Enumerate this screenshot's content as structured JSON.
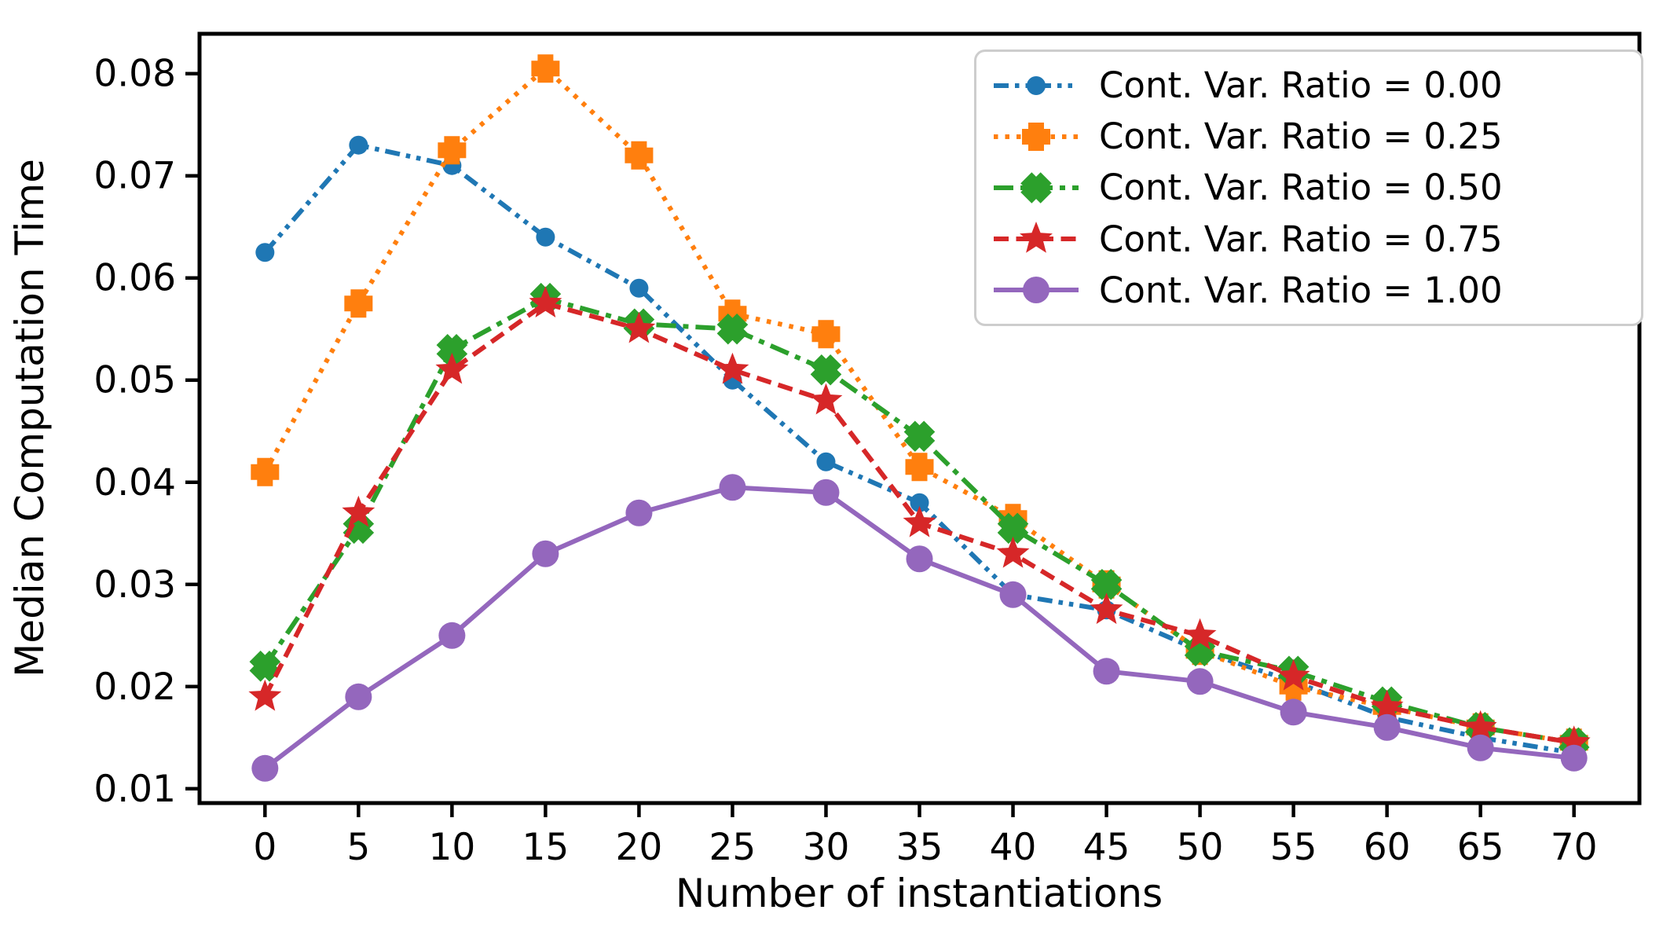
{
  "page": {
    "background": "#ffffff"
  },
  "chart_data": {
    "type": "line",
    "title": "",
    "xlabel": "Number of instantiations",
    "ylabel": "Median Computation Time",
    "grid": false,
    "legend_position": "upper-right",
    "legend_border_color": "#cdcdcd",
    "legend_background": "#ffffff",
    "xlim": [
      -3.5,
      73.5
    ],
    "ylim": [
      0.0086,
      0.0839
    ],
    "x": [
      0,
      5,
      10,
      15,
      20,
      25,
      30,
      35,
      40,
      45,
      50,
      55,
      60,
      65,
      70
    ],
    "xtick_labels": [
      "0",
      "5",
      "10",
      "15",
      "20",
      "25",
      "30",
      "35",
      "40",
      "45",
      "50",
      "55",
      "60",
      "65",
      "70"
    ],
    "yticks": [
      0.01,
      0.02,
      0.03,
      0.04,
      0.05,
      0.06,
      0.07,
      0.08
    ],
    "ytick_labels": [
      "0.01",
      "0.02",
      "0.03",
      "0.04",
      "0.05",
      "0.06",
      "0.07",
      "0.08"
    ],
    "series": [
      {
        "name": "Cont. Var. Ratio = 0.00",
        "color": "#1f77b4",
        "linestyle": "dashdotdot",
        "marker": "circle",
        "values": [
          0.0625,
          0.073,
          0.071,
          0.064,
          0.059,
          0.05,
          0.042,
          0.038,
          0.029,
          0.0275,
          0.0235,
          0.0205,
          0.017,
          0.015,
          0.0135
        ]
      },
      {
        "name": "Cont. Var. Ratio = 0.25",
        "color": "#ff7f0e",
        "linestyle": "dotted",
        "marker": "plus",
        "values": [
          0.041,
          0.0575,
          0.0725,
          0.0805,
          0.072,
          0.0565,
          0.0545,
          0.0415,
          0.0365,
          0.03,
          0.0235,
          0.02,
          0.018,
          0.016,
          0.0145
        ]
      },
      {
        "name": "Cont. Var. Ratio = 0.50",
        "color": "#2ca02c",
        "linestyle": "dashdot",
        "marker": "x",
        "values": [
          0.022,
          0.0355,
          0.053,
          0.058,
          0.0555,
          0.055,
          0.051,
          0.0445,
          0.0355,
          0.03,
          0.0235,
          0.0215,
          0.0185,
          0.016,
          0.0145
        ]
      },
      {
        "name": "Cont. Var. Ratio = 0.75",
        "color": "#d62728",
        "linestyle": "dashed",
        "marker": "star",
        "values": [
          0.019,
          0.037,
          0.051,
          0.0575,
          0.055,
          0.051,
          0.048,
          0.036,
          0.033,
          0.0275,
          0.025,
          0.021,
          0.018,
          0.016,
          0.0145
        ]
      },
      {
        "name": "Cont. Var. Ratio = 1.00",
        "color": "#9467bd",
        "linestyle": "solid",
        "marker": "circle-large",
        "values": [
          0.012,
          0.019,
          0.025,
          0.033,
          0.037,
          0.0395,
          0.039,
          0.0325,
          0.029,
          0.0215,
          0.0205,
          0.0175,
          0.016,
          0.014,
          0.013
        ]
      }
    ]
  }
}
